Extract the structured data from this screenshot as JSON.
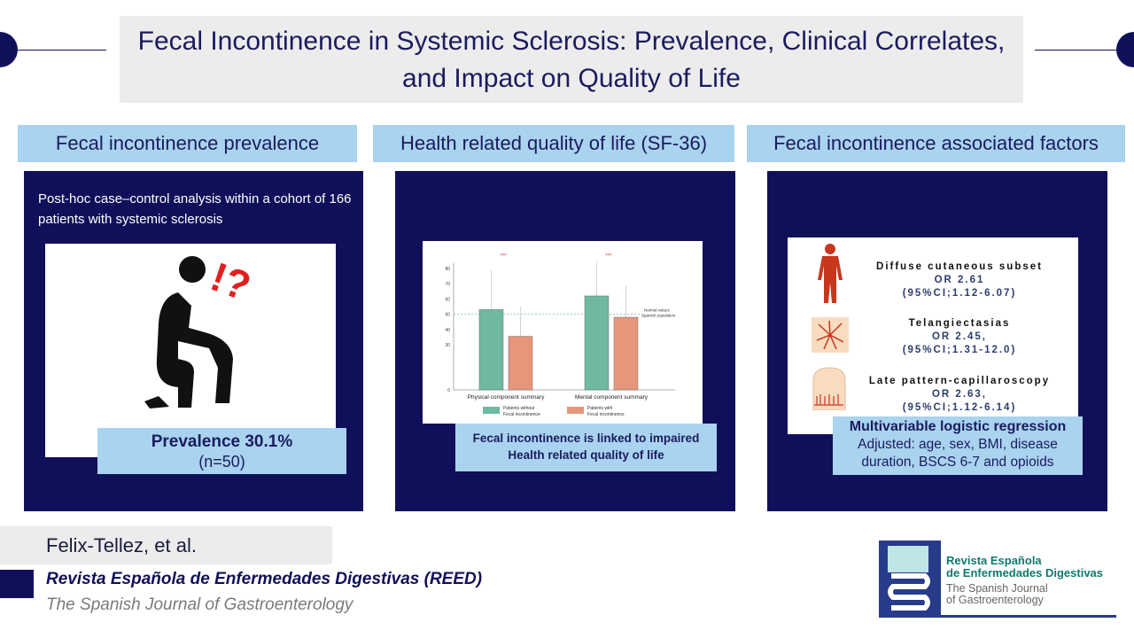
{
  "title": "Fecal Incontinence in Systemic Sclerosis: Prevalence, Clinical Correlates, and Impact on Quality of Life",
  "sections": {
    "prevalence": {
      "header": "Fecal incontinence prevalence",
      "description": "Post-hoc case–control analysis within a cohort of 166 patients with systemic sclerosis",
      "result": "Prevalence 30.1%",
      "n": "(n=50)",
      "icon": "person-squatting-question-icon"
    },
    "qol": {
      "header": "Health related quality of life (SF-36)",
      "caption": "Fecal incontinence is linked to impaired Health related quality of life"
    },
    "factors": {
      "header": "Fecal incontinence associated factors",
      "items": [
        {
          "name": "Diffuse cutaneous subset",
          "or": "OR 2.61",
          "ci": "(95%CI;1.12-6.07)",
          "icon": "human-body-icon"
        },
        {
          "name": "Telangiectasias",
          "or": "OR 2.45,",
          "ci": "(95%CI;1.31-12.0)",
          "icon": "telangiectasia-icon"
        },
        {
          "name": "Late pattern-capillaroscopy",
          "or": "OR 2.63,",
          "ci": "(95%CI;1.12-6.14)",
          "icon": "fingernail-capillary-icon"
        }
      ],
      "method_title": "Multivariable logistic regression",
      "method_detail": "Adjusted: age, sex, BMI, disease duration, BSCS 6-7 and opioids"
    }
  },
  "footer": {
    "authors": "Felix-Tellez, et al.",
    "journal": "Revista Española de Enfermedades Digestivas (REED)",
    "journal_en": "The Spanish Journal of Gastroenterology",
    "logo": {
      "line1": "Revista Española",
      "line2": "de Enfermedades Digestivas",
      "line3": "The Spanish Journal",
      "line4": "of Gastroenterology"
    }
  },
  "chart_data": {
    "type": "bar",
    "categories": [
      "Physical component summary",
      "Mental component summary"
    ],
    "series": [
      {
        "name": "Patients without Fecal incontinence",
        "values": [
          53,
          62
        ],
        "error_upper": [
          79,
          85
        ],
        "color": "#6fb9a0"
      },
      {
        "name": "Patients with Fecal incontinence",
        "values": [
          35.5,
          48
        ],
        "error_upper": [
          55,
          69
        ],
        "color": "#e8967a"
      }
    ],
    "yticks": [
      0,
      30,
      40,
      50,
      60,
      70,
      80
    ],
    "ylim": [
      0,
      80
    ],
    "significance": [
      "***",
      "***"
    ],
    "reference_line": {
      "value": 50,
      "label1": "Normal values",
      "label2": "Spanish population"
    },
    "legend": [
      [
        "Patients without",
        "Fecal incontinence"
      ],
      [
        "Patients with",
        "Fecal incontinence"
      ]
    ],
    "legend_placement": "bottom"
  },
  "colors": {
    "navy": "#10105a",
    "light_blue": "#a9d3ef",
    "gray": "#ececec"
  }
}
